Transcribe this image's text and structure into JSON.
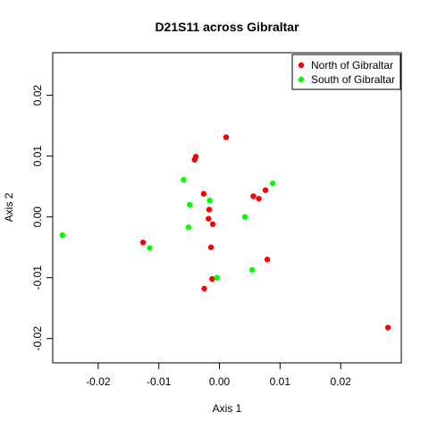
{
  "chart_data": {
    "type": "scatter",
    "title": "D21S11 across Gibraltar",
    "xlabel": "Axis 1",
    "ylabel": "Axis 2",
    "xlim": [
      -0.0275,
      0.03
    ],
    "ylim": [
      -0.024,
      0.027
    ],
    "x_ticks": [
      -0.02,
      -0.01,
      0.0,
      0.01,
      0.02
    ],
    "x_tick_labels": [
      "-0.02",
      "-0.01",
      "0.00",
      "0.01",
      "0.02"
    ],
    "y_ticks": [
      -0.02,
      -0.01,
      0.0,
      0.01,
      0.02
    ],
    "y_tick_labels": [
      "-0.02",
      "-0.01",
      "0.00",
      "0.01",
      "0.02"
    ],
    "grid": false,
    "legend_position": "top-right",
    "series": [
      {
        "name": "North of Gibraltar",
        "color": "#ff0000",
        "points": [
          {
            "x": 0.0011,
            "y": 0.0131
          },
          {
            "x": -0.0039,
            "y": 0.0099
          },
          {
            "x": -0.0041,
            "y": 0.0094
          },
          {
            "x": -0.0026,
            "y": 0.0038
          },
          {
            "x": -0.0017,
            "y": 0.0012
          },
          {
            "x": -0.0018,
            "y": -0.0003
          },
          {
            "x": -0.0011,
            "y": -0.0012
          },
          {
            "x": 0.0056,
            "y": 0.0034
          },
          {
            "x": 0.0065,
            "y": 0.003
          },
          {
            "x": 0.0076,
            "y": 0.0044
          },
          {
            "x": -0.0126,
            "y": -0.0042
          },
          {
            "x": -0.0014,
            "y": -0.005
          },
          {
            "x": 0.0079,
            "y": -0.007
          },
          {
            "x": -0.0012,
            "y": -0.0102
          },
          {
            "x": -0.0025,
            "y": -0.0118
          },
          {
            "x": 0.0278,
            "y": -0.0182
          }
        ]
      },
      {
        "name": "South of Gibraltar",
        "color": "#00ff00",
        "points": [
          {
            "x": -0.0059,
            "y": 0.0061
          },
          {
            "x": -0.0016,
            "y": 0.0027
          },
          {
            "x": -0.0049,
            "y": 0.002
          },
          {
            "x": 0.0088,
            "y": 0.0055
          },
          {
            "x": 0.0042,
            "y": 0.0
          },
          {
            "x": -0.0051,
            "y": -0.0017
          },
          {
            "x": -0.0259,
            "y": -0.003
          },
          {
            "x": -0.0115,
            "y": -0.0051
          },
          {
            "x": 0.0054,
            "y": -0.0087
          },
          {
            "x": -0.0004,
            "y": -0.01
          }
        ]
      }
    ]
  }
}
